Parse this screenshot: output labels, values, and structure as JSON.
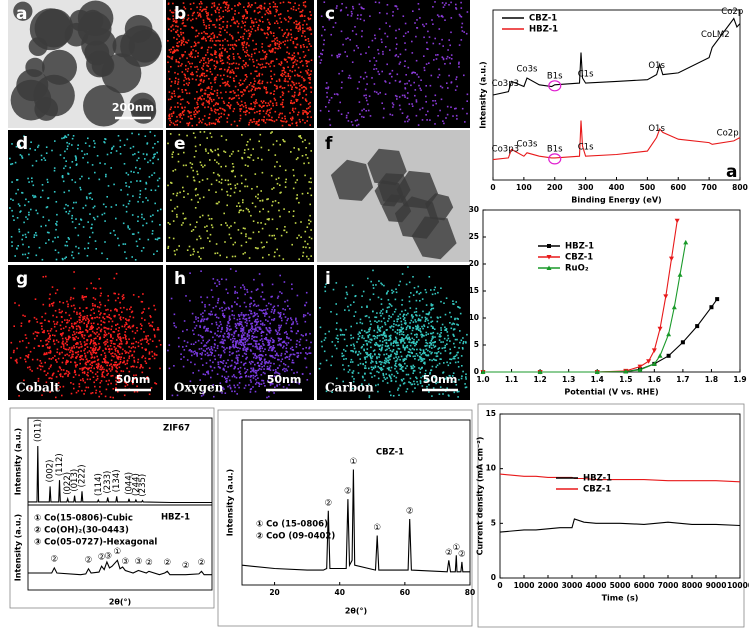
{
  "panels": [
    {
      "label": "a",
      "scale_bar": "200nm"
    },
    {
      "label": "b",
      "color": "#ff2a1a"
    },
    {
      "label": "c",
      "color": "#8a3ad8"
    },
    {
      "label": "d",
      "color": "#33c8c8"
    },
    {
      "label": "e",
      "color": "#c4d84a"
    },
    {
      "label": "f"
    },
    {
      "label": "g",
      "caption": "Cobalt",
      "scale_bar": "50nm",
      "color": "#ff2020"
    },
    {
      "label": "h",
      "caption": "Oxygen",
      "scale_bar": "50nm",
      "color": "#7a3ae0"
    },
    {
      "label": "i",
      "caption": "Carbon",
      "scale_bar": "50nm",
      "color": "#35c8c0"
    }
  ],
  "chart_data": [
    {
      "type": "line",
      "x": [
        0,
        50,
        60,
        100,
        110,
        150,
        190,
        200,
        280,
        285,
        290,
        300,
        400,
        500,
        530,
        540,
        550,
        600,
        700,
        710,
        780,
        790,
        800
      ],
      "series": [
        {
          "name": "CBZ-1",
          "color": "#000000",
          "values": [
            50,
            52,
            58,
            55,
            60,
            56,
            55,
            56,
            57,
            75,
            60,
            57,
            58,
            59,
            62,
            68,
            62,
            63,
            72,
            78,
            95,
            90,
            92
          ]
        },
        {
          "name": "HBZ-1",
          "color": "#e8191a",
          "values": [
            12,
            13,
            18,
            14,
            16,
            14,
            13,
            13,
            14,
            35,
            20,
            14,
            15,
            17,
            25,
            30,
            28,
            24,
            22,
            21,
            23,
            24,
            25
          ]
        }
      ],
      "xlim": [
        0,
        800
      ],
      "xticks": [
        0,
        100,
        200,
        300,
        400,
        500,
        600,
        700,
        800
      ],
      "ylim": [
        0,
        100
      ],
      "xlabel": "Binding Energy (eV)",
      "ylabel": "Intensity (a.u.)",
      "annotations": [
        {
          "text": "Co3p3",
          "x": 40,
          "series": 0
        },
        {
          "text": "Co3s",
          "x": 110,
          "series": 0
        },
        {
          "text": "B1s",
          "x": 200,
          "series": 0
        },
        {
          "text": "C1s",
          "x": 300,
          "series": 0
        },
        {
          "text": "O1s",
          "x": 530,
          "series": 0
        },
        {
          "text": "CoLM2",
          "x": 720,
          "series": 0
        },
        {
          "text": "Co2p",
          "x": 775,
          "series": 0
        },
        {
          "text": "Co3p3",
          "x": 40,
          "series": 1
        },
        {
          "text": "Co3s",
          "x": 110,
          "series": 1
        },
        {
          "text": "B1s",
          "x": 200,
          "series": 1
        },
        {
          "text": "C1s",
          "x": 300,
          "series": 1
        },
        {
          "text": "O1s",
          "x": 530,
          "series": 1
        },
        {
          "text": "Co2p",
          "x": 760,
          "series": 1
        }
      ],
      "panel_label": "a"
    },
    {
      "type": "line",
      "series": [
        {
          "name": "HBZ-1",
          "color": "#000000",
          "marker": "square",
          "x": [
            1.0,
            1.2,
            1.4,
            1.5,
            1.55,
            1.6,
            1.65,
            1.7,
            1.75,
            1.8,
            1.82
          ],
          "values": [
            0,
            0,
            0,
            0.1,
            0.5,
            1.5,
            3,
            5.5,
            8.5,
            12,
            13.5
          ]
        },
        {
          "name": "CBZ-1",
          "color": "#e8191a",
          "marker": "triangle-down",
          "x": [
            1.0,
            1.2,
            1.4,
            1.5,
            1.55,
            1.58,
            1.6,
            1.62,
            1.64,
            1.66,
            1.68
          ],
          "values": [
            0,
            0,
            0,
            0.2,
            1,
            2,
            4,
            8,
            14,
            21,
            28
          ]
        },
        {
          "name": "RuO₂",
          "color": "#1a9a2a",
          "marker": "triangle-up",
          "x": [
            1.0,
            1.2,
            1.4,
            1.5,
            1.55,
            1.6,
            1.62,
            1.65,
            1.67,
            1.69,
            1.71
          ],
          "values": [
            0,
            0,
            0,
            0.1,
            0.4,
            1.5,
            3,
            7,
            12,
            18,
            24
          ]
        }
      ],
      "xlim": [
        1.0,
        1.9
      ],
      "xticks": [
        {
          "value": 1.0,
          "label": "1.0"
        },
        1.1,
        1.2,
        1.3,
        1.4,
        1.5,
        1.6,
        1.7,
        1.8,
        1.9
      ],
      "ylim": [
        0,
        30
      ],
      "yticks": [
        0,
        5,
        10,
        15,
        20,
        25,
        30
      ],
      "xlabel": "Potential (V vs. RHE)"
    },
    {
      "type": "line",
      "title": "ZIF67",
      "color": "#000000",
      "x": [
        5,
        7.2,
        7.4,
        7.6,
        10.2,
        10.4,
        10.6,
        12.5,
        12.7,
        12.9,
        14.5,
        14.7,
        14.9,
        16.2,
        16.4,
        16.6,
        18.0,
        18.2,
        18.4,
        22.0,
        22.2,
        22.4,
        24.3,
        24.5,
        24.7,
        26.5,
        26.7,
        26.9,
        29.5,
        29.7,
        29.9,
        31.2,
        31.4,
        31.6,
        32.8,
        33.0,
        33.2,
        40,
        50
      ],
      "values": [
        5,
        5,
        95,
        5,
        5,
        30,
        5,
        5,
        40,
        5,
        5,
        10,
        5,
        5,
        15,
        5,
        5,
        22,
        5,
        5,
        8,
        5,
        5,
        12,
        5,
        5,
        14,
        5,
        5,
        10,
        5,
        5,
        8,
        5,
        5,
        7,
        5,
        4,
        4
      ],
      "xlim": [
        5,
        50
      ],
      "ylim": [
        0,
        140
      ],
      "ylabel": "Intensity (a.u.)",
      "annotations": [
        {
          "text": "(011)",
          "x": 7.4
        },
        {
          "text": "(002)",
          "x": 10.4
        },
        {
          "text": "(112)",
          "x": 12.7
        },
        {
          "text": "(022)",
          "x": 14.7
        },
        {
          "text": "(013)",
          "x": 16.4
        },
        {
          "text": "(222)",
          "x": 18.2
        },
        {
          "text": "(114)",
          "x": 22.2
        },
        {
          "text": "(233)",
          "x": 24.5
        },
        {
          "text": "(134)",
          "x": 26.7
        },
        {
          "text": "(044)",
          "x": 29.7
        },
        {
          "text": "(244)",
          "x": 31.4
        },
        {
          "text": "(235)",
          "x": 33.0
        }
      ]
    },
    {
      "type": "line",
      "title": "HBZ-1",
      "color": "#000000",
      "x": [
        10,
        19,
        20,
        21,
        30,
        32,
        33,
        34,
        37,
        38,
        39,
        40,
        41,
        42,
        44,
        45,
        46,
        47,
        50,
        52,
        55,
        56,
        60,
        62,
        63,
        64,
        70,
        75,
        76,
        77,
        80
      ],
      "values": [
        20,
        20,
        26,
        20,
        18,
        19,
        25,
        20,
        21,
        28,
        24,
        33,
        26,
        28,
        35,
        25,
        27,
        23,
        20,
        23,
        20,
        22,
        18,
        20,
        22,
        18,
        18,
        19,
        22,
        18,
        18
      ],
      "xlim": [
        10,
        80
      ],
      "ylim": [
        0,
        100
      ],
      "xlabel": "2θ(°)",
      "ylabel": "Intensity (a.u.)",
      "notes": [
        "① Co(15-0806)-Cubic",
        "② Co(OH)₂(30-0443)",
        "③ Co(05-0727)-Hexagonal"
      ],
      "annotations": [
        {
          "text": "②",
          "x": 20
        },
        {
          "text": "②",
          "x": 33
        },
        {
          "text": "②",
          "x": 38
        },
        {
          "text": "③",
          "x": 40.5
        },
        {
          "text": "①",
          "x": 44
        },
        {
          "text": "③",
          "x": 47
        },
        {
          "text": "③",
          "x": 52
        },
        {
          "text": "②",
          "x": 56
        },
        {
          "text": "②",
          "x": 63
        },
        {
          "text": "②",
          "x": 70
        },
        {
          "text": "②",
          "x": 76
        }
      ]
    },
    {
      "type": "line",
      "title": "CBZ-1",
      "color": "#000000",
      "x": [
        10,
        20,
        30,
        35,
        36,
        36.5,
        37,
        42,
        42.5,
        43,
        43.8,
        44.2,
        44.6,
        51,
        51.5,
        52,
        61,
        61.5,
        62,
        73,
        73.5,
        74,
        75.5,
        75.8,
        76,
        77.2,
        77.5,
        77.8,
        80
      ],
      "values": [
        12,
        10,
        9,
        9,
        10,
        45,
        10,
        10,
        52,
        12,
        15,
        70,
        12,
        9,
        30,
        9,
        9,
        40,
        9,
        8,
        15,
        8,
        8,
        18,
        8,
        8,
        14,
        8,
        8
      ],
      "xlim": [
        10,
        80
      ],
      "xticks": [
        20,
        40,
        60,
        80
      ],
      "ylim": [
        0,
        100
      ],
      "xlabel": "2θ(°)",
      "ylabel": "Intensity (a.u.)",
      "notes": [
        "① Co (15-0806)",
        "② CoO (09-0402)"
      ],
      "annotations": [
        {
          "text": "②",
          "x": 36.5
        },
        {
          "text": "②",
          "x": 42.5
        },
        {
          "text": "①",
          "x": 44.2
        },
        {
          "text": "①",
          "x": 51.5
        },
        {
          "text": "②",
          "x": 61.5
        },
        {
          "text": "②",
          "x": 73.5
        },
        {
          "text": "①",
          "x": 75.8
        },
        {
          "text": "②",
          "x": 77.5
        }
      ]
    },
    {
      "type": "line",
      "x": [
        0,
        500,
        1000,
        1500,
        2000,
        2500,
        3000,
        3100,
        3500,
        4000,
        5000,
        6000,
        7000,
        8000,
        9000,
        10000
      ],
      "series": [
        {
          "name": "HBZ-1",
          "color": "#000000",
          "values": [
            4.2,
            4.3,
            4.4,
            4.4,
            4.5,
            4.6,
            4.6,
            5.4,
            5.1,
            5.0,
            5.0,
            4.9,
            5.1,
            4.9,
            4.9,
            4.8
          ]
        },
        {
          "name": "CBZ-1",
          "color": "#e8191a",
          "values": [
            9.5,
            9.4,
            9.3,
            9.3,
            9.2,
            9.2,
            9.2,
            9.1,
            9.1,
            9.0,
            9.0,
            9.0,
            8.9,
            8.9,
            8.9,
            8.8
          ]
        }
      ],
      "xlim": [
        0,
        10000
      ],
      "xticks": [
        0,
        1000,
        2000,
        3000,
        4000,
        5000,
        6000,
        7000,
        8000,
        9000,
        10000
      ],
      "ylim": [
        0,
        15
      ],
      "yticks": [
        0,
        5,
        10,
        15
      ],
      "xlabel": "Time (s)",
      "ylabel": "Current density (mA cm⁻²)"
    }
  ]
}
